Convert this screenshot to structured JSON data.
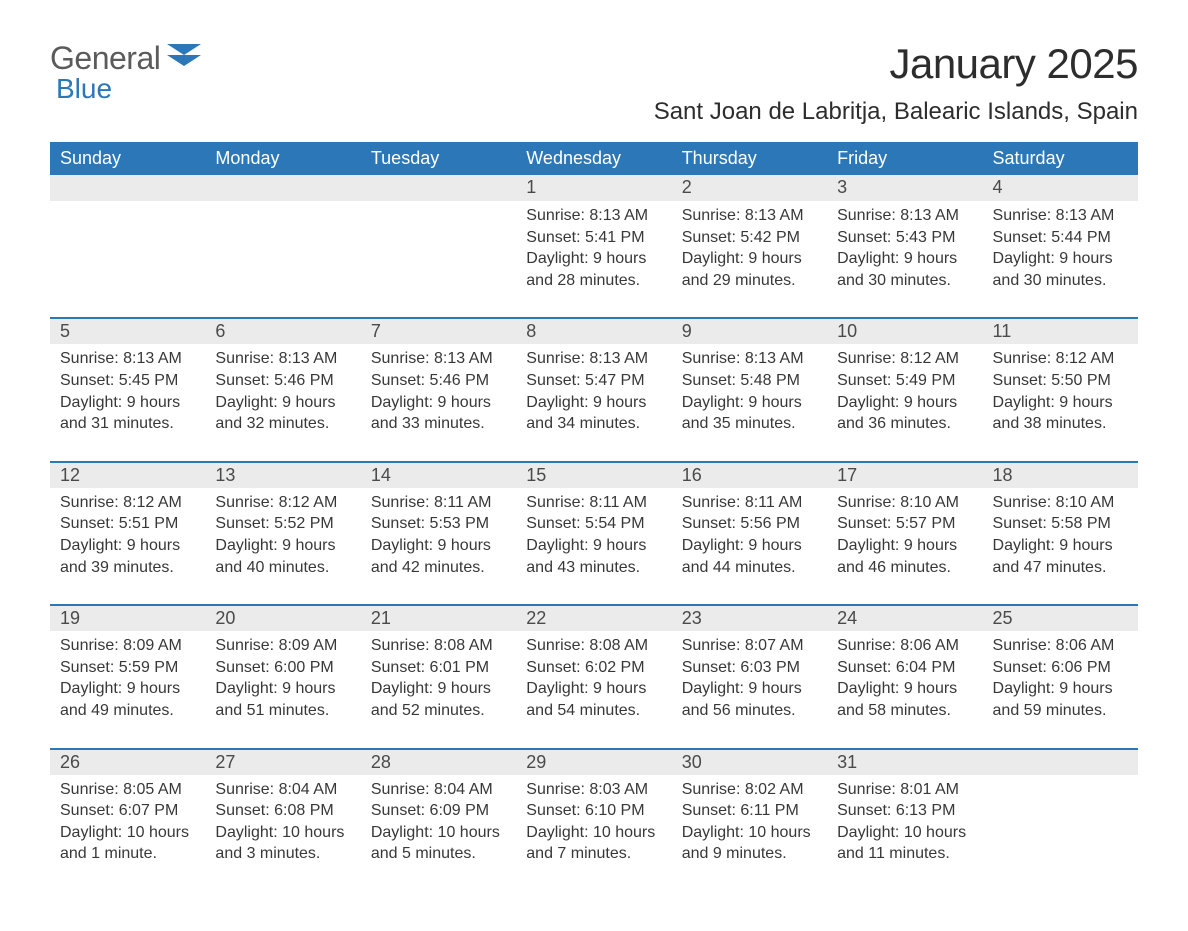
{
  "logo": {
    "word1": "General",
    "word2": "Blue"
  },
  "title": "January 2025",
  "location": "Sant Joan de Labritja, Balearic Islands, Spain",
  "colors": {
    "brand_blue": "#2b77b8",
    "header_row_bg": "#ebebeb",
    "text": "#383838",
    "logo_gray": "#5b5b5b",
    "background": "#ffffff"
  },
  "typography": {
    "title_fontsize": 42,
    "location_fontsize": 24,
    "dayheader_fontsize": 18,
    "daynum_fontsize": 18,
    "body_fontsize": 16,
    "font_family": "Arial"
  },
  "layout": {
    "columns": 7,
    "rows": 5,
    "first_weekday_index": 3
  },
  "day_headers": [
    "Sunday",
    "Monday",
    "Tuesday",
    "Wednesday",
    "Thursday",
    "Friday",
    "Saturday"
  ],
  "labels": {
    "sunrise": "Sunrise:",
    "sunset": "Sunset:",
    "daylight": "Daylight:"
  },
  "days": [
    {
      "n": 1,
      "sunrise": "8:13 AM",
      "sunset": "5:41 PM",
      "daylight": "9 hours and 28 minutes."
    },
    {
      "n": 2,
      "sunrise": "8:13 AM",
      "sunset": "5:42 PM",
      "daylight": "9 hours and 29 minutes."
    },
    {
      "n": 3,
      "sunrise": "8:13 AM",
      "sunset": "5:43 PM",
      "daylight": "9 hours and 30 minutes."
    },
    {
      "n": 4,
      "sunrise": "8:13 AM",
      "sunset": "5:44 PM",
      "daylight": "9 hours and 30 minutes."
    },
    {
      "n": 5,
      "sunrise": "8:13 AM",
      "sunset": "5:45 PM",
      "daylight": "9 hours and 31 minutes."
    },
    {
      "n": 6,
      "sunrise": "8:13 AM",
      "sunset": "5:46 PM",
      "daylight": "9 hours and 32 minutes."
    },
    {
      "n": 7,
      "sunrise": "8:13 AM",
      "sunset": "5:46 PM",
      "daylight": "9 hours and 33 minutes."
    },
    {
      "n": 8,
      "sunrise": "8:13 AM",
      "sunset": "5:47 PM",
      "daylight": "9 hours and 34 minutes."
    },
    {
      "n": 9,
      "sunrise": "8:13 AM",
      "sunset": "5:48 PM",
      "daylight": "9 hours and 35 minutes."
    },
    {
      "n": 10,
      "sunrise": "8:12 AM",
      "sunset": "5:49 PM",
      "daylight": "9 hours and 36 minutes."
    },
    {
      "n": 11,
      "sunrise": "8:12 AM",
      "sunset": "5:50 PM",
      "daylight": "9 hours and 38 minutes."
    },
    {
      "n": 12,
      "sunrise": "8:12 AM",
      "sunset": "5:51 PM",
      "daylight": "9 hours and 39 minutes."
    },
    {
      "n": 13,
      "sunrise": "8:12 AM",
      "sunset": "5:52 PM",
      "daylight": "9 hours and 40 minutes."
    },
    {
      "n": 14,
      "sunrise": "8:11 AM",
      "sunset": "5:53 PM",
      "daylight": "9 hours and 42 minutes."
    },
    {
      "n": 15,
      "sunrise": "8:11 AM",
      "sunset": "5:54 PM",
      "daylight": "9 hours and 43 minutes."
    },
    {
      "n": 16,
      "sunrise": "8:11 AM",
      "sunset": "5:56 PM",
      "daylight": "9 hours and 44 minutes."
    },
    {
      "n": 17,
      "sunrise": "8:10 AM",
      "sunset": "5:57 PM",
      "daylight": "9 hours and 46 minutes."
    },
    {
      "n": 18,
      "sunrise": "8:10 AM",
      "sunset": "5:58 PM",
      "daylight": "9 hours and 47 minutes."
    },
    {
      "n": 19,
      "sunrise": "8:09 AM",
      "sunset": "5:59 PM",
      "daylight": "9 hours and 49 minutes."
    },
    {
      "n": 20,
      "sunrise": "8:09 AM",
      "sunset": "6:00 PM",
      "daylight": "9 hours and 51 minutes."
    },
    {
      "n": 21,
      "sunrise": "8:08 AM",
      "sunset": "6:01 PM",
      "daylight": "9 hours and 52 minutes."
    },
    {
      "n": 22,
      "sunrise": "8:08 AM",
      "sunset": "6:02 PM",
      "daylight": "9 hours and 54 minutes."
    },
    {
      "n": 23,
      "sunrise": "8:07 AM",
      "sunset": "6:03 PM",
      "daylight": "9 hours and 56 minutes."
    },
    {
      "n": 24,
      "sunrise": "8:06 AM",
      "sunset": "6:04 PM",
      "daylight": "9 hours and 58 minutes."
    },
    {
      "n": 25,
      "sunrise": "8:06 AM",
      "sunset": "6:06 PM",
      "daylight": "9 hours and 59 minutes."
    },
    {
      "n": 26,
      "sunrise": "8:05 AM",
      "sunset": "6:07 PM",
      "daylight": "10 hours and 1 minute."
    },
    {
      "n": 27,
      "sunrise": "8:04 AM",
      "sunset": "6:08 PM",
      "daylight": "10 hours and 3 minutes."
    },
    {
      "n": 28,
      "sunrise": "8:04 AM",
      "sunset": "6:09 PM",
      "daylight": "10 hours and 5 minutes."
    },
    {
      "n": 29,
      "sunrise": "8:03 AM",
      "sunset": "6:10 PM",
      "daylight": "10 hours and 7 minutes."
    },
    {
      "n": 30,
      "sunrise": "8:02 AM",
      "sunset": "6:11 PM",
      "daylight": "10 hours and 9 minutes."
    },
    {
      "n": 31,
      "sunrise": "8:01 AM",
      "sunset": "6:13 PM",
      "daylight": "10 hours and 11 minutes."
    }
  ]
}
